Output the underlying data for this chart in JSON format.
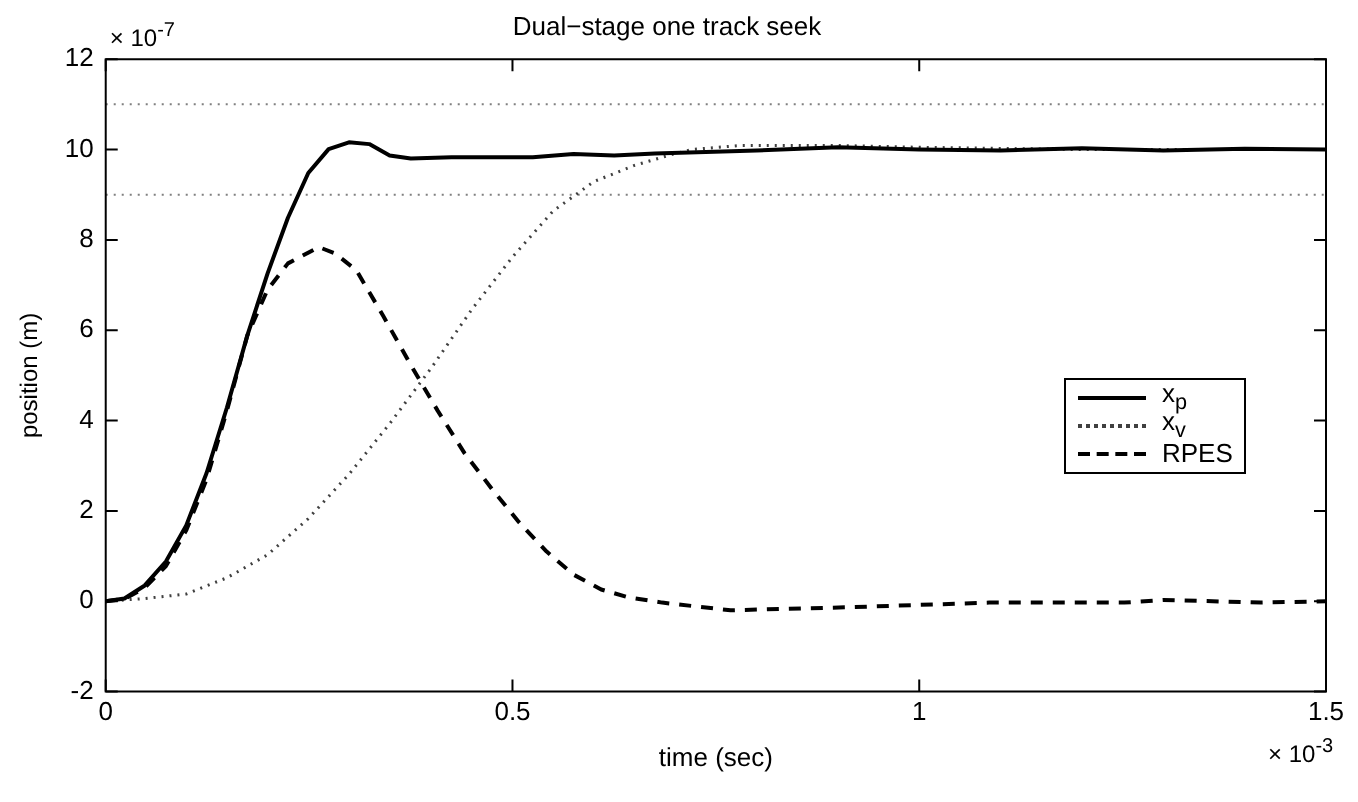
{
  "chart_data": {
    "type": "line",
    "title": "Dual−stage one track seek",
    "xlabel": "time (sec)",
    "ylabel": "position (m)",
    "annotations": [
      "× 10$^{-7}$",
      "× 10$^{-3}$"
    ],
    "xlim": [
      0,
      1.5
    ],
    "xticks": [
      0,
      0.5,
      1,
      1.5
    ],
    "ylim": [
      -2,
      12
    ],
    "yticks": [
      -2,
      0,
      2,
      4,
      6,
      8,
      10,
      12
    ],
    "grid": false,
    "legend": "right",
    "marker": "none",
    "ref_lines": [
      {
        "axis": "y",
        "value": 11,
        "color": "#808080",
        "line_style": "dotted"
      },
      {
        "axis": "y",
        "value": 9,
        "color": "#808080",
        "line_style": "dotted"
      }
    ],
    "series": [
      {
        "name": "x$_{p}$",
        "color": "#000000",
        "line_style": "solid",
        "x": [
          0,
          0.023,
          0.048,
          0.074,
          0.099,
          0.124,
          0.149,
          0.174,
          0.199,
          0.224,
          0.249,
          0.274,
          0.299,
          0.324,
          0.349,
          0.375,
          0.425,
          0.475,
          0.525,
          0.575,
          0.625,
          0.675,
          0.8,
          0.9,
          1.0,
          1.1,
          1.2,
          1.3,
          1.4,
          1.5
        ],
        "values": [
          0,
          0.06,
          0.35,
          0.88,
          1.68,
          2.84,
          4.29,
          5.88,
          7.26,
          8.49,
          9.48,
          10.01,
          10.16,
          10.12,
          9.87,
          9.8,
          9.83,
          9.83,
          9.83,
          9.9,
          9.87,
          9.91,
          9.98,
          10.05,
          10.0,
          9.98,
          10.03,
          9.98,
          10.02,
          10.0
        ]
      },
      {
        "name": "x$_{v}$",
        "color": "#404040",
        "line_style": "dotted",
        "x": [
          0,
          0.048,
          0.099,
          0.149,
          0.199,
          0.249,
          0.299,
          0.349,
          0.4,
          0.45,
          0.5,
          0.55,
          0.6,
          0.65,
          0.692,
          0.72,
          0.78,
          0.9,
          1.0,
          1.2,
          1.5
        ],
        "values": [
          0,
          0.06,
          0.16,
          0.52,
          1.03,
          1.83,
          2.81,
          3.93,
          5.16,
          6.46,
          7.62,
          8.64,
          9.29,
          9.65,
          9.87,
          10.0,
          10.09,
          10.09,
          10.05,
          10.0,
          10.0
        ]
      },
      {
        "name": "RPES",
        "color": "#000000",
        "line_style": "dashed",
        "x": [
          0,
          0.023,
          0.048,
          0.074,
          0.099,
          0.124,
          0.149,
          0.174,
          0.199,
          0.224,
          0.262,
          0.282,
          0.308,
          0.341,
          0.375,
          0.408,
          0.441,
          0.475,
          0.508,
          0.542,
          0.575,
          0.609,
          0.642,
          0.684,
          0.768,
          0.918,
          1.086,
          1.252,
          1.3,
          1.42,
          1.5
        ],
        "values": [
          0,
          0.05,
          0.3,
          0.78,
          1.57,
          2.7,
          4.22,
          5.88,
          6.9,
          7.48,
          7.84,
          7.7,
          7.33,
          6.32,
          5.23,
          4.22,
          3.28,
          2.48,
          1.75,
          1.1,
          0.59,
          0.26,
          0.09,
          -0.03,
          -0.2,
          -0.13,
          -0.03,
          -0.03,
          0.03,
          -0.03,
          0.0
        ]
      }
    ]
  }
}
